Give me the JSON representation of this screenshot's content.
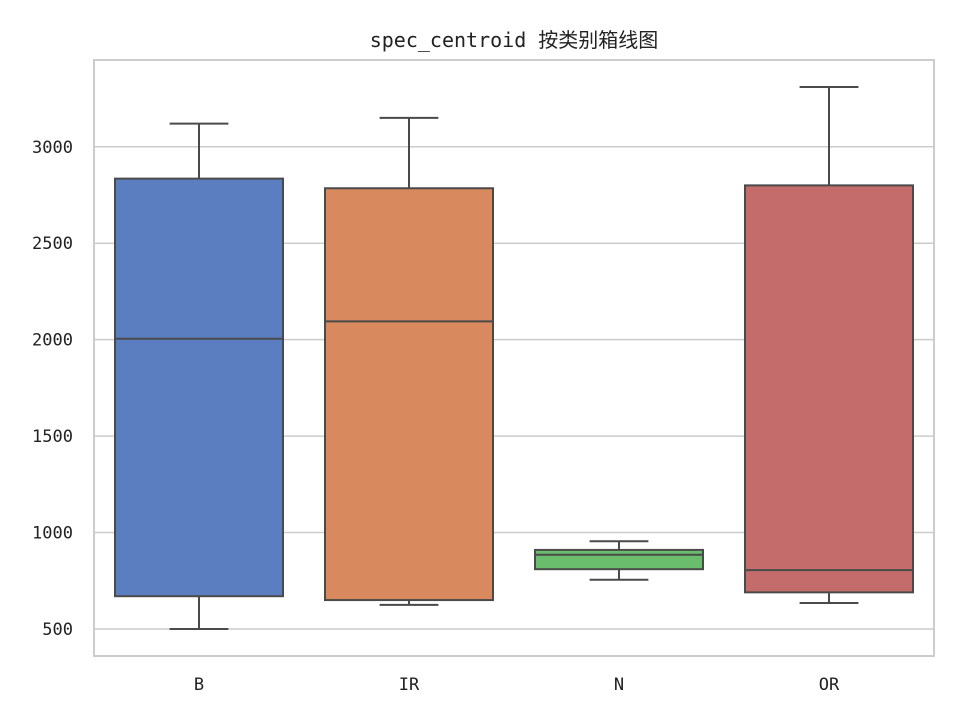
{
  "chart_data": {
    "type": "box",
    "title": "spec_centroid 按类别箱线图",
    "xlabel": "",
    "ylabel": "",
    "categories": [
      "B",
      "IR",
      "N",
      "OR"
    ],
    "colors": {
      "B": "#5a7ec0",
      "IR": "#d9895e",
      "N": "#6bbd6e",
      "OR": "#c46c6c"
    },
    "boxes": [
      {
        "category": "B",
        "whisker_low": 500,
        "q1": 670,
        "median": 2005,
        "q3": 2835,
        "whisker_high": 3120
      },
      {
        "category": "IR",
        "whisker_low": 625,
        "q1": 650,
        "median": 2095,
        "q3": 2785,
        "whisker_high": 3150
      },
      {
        "category": "N",
        "whisker_low": 755,
        "q1": 810,
        "median": 885,
        "q3": 910,
        "whisker_high": 955
      },
      {
        "category": "OR",
        "whisker_low": 635,
        "q1": 690,
        "median": 805,
        "q3": 2800,
        "whisker_high": 3310
      }
    ],
    "ylim": [
      360,
      3450
    ],
    "yticks": [
      500,
      1000,
      1500,
      2000,
      2500,
      3000
    ],
    "grid": "horizontal",
    "legend": "none"
  }
}
